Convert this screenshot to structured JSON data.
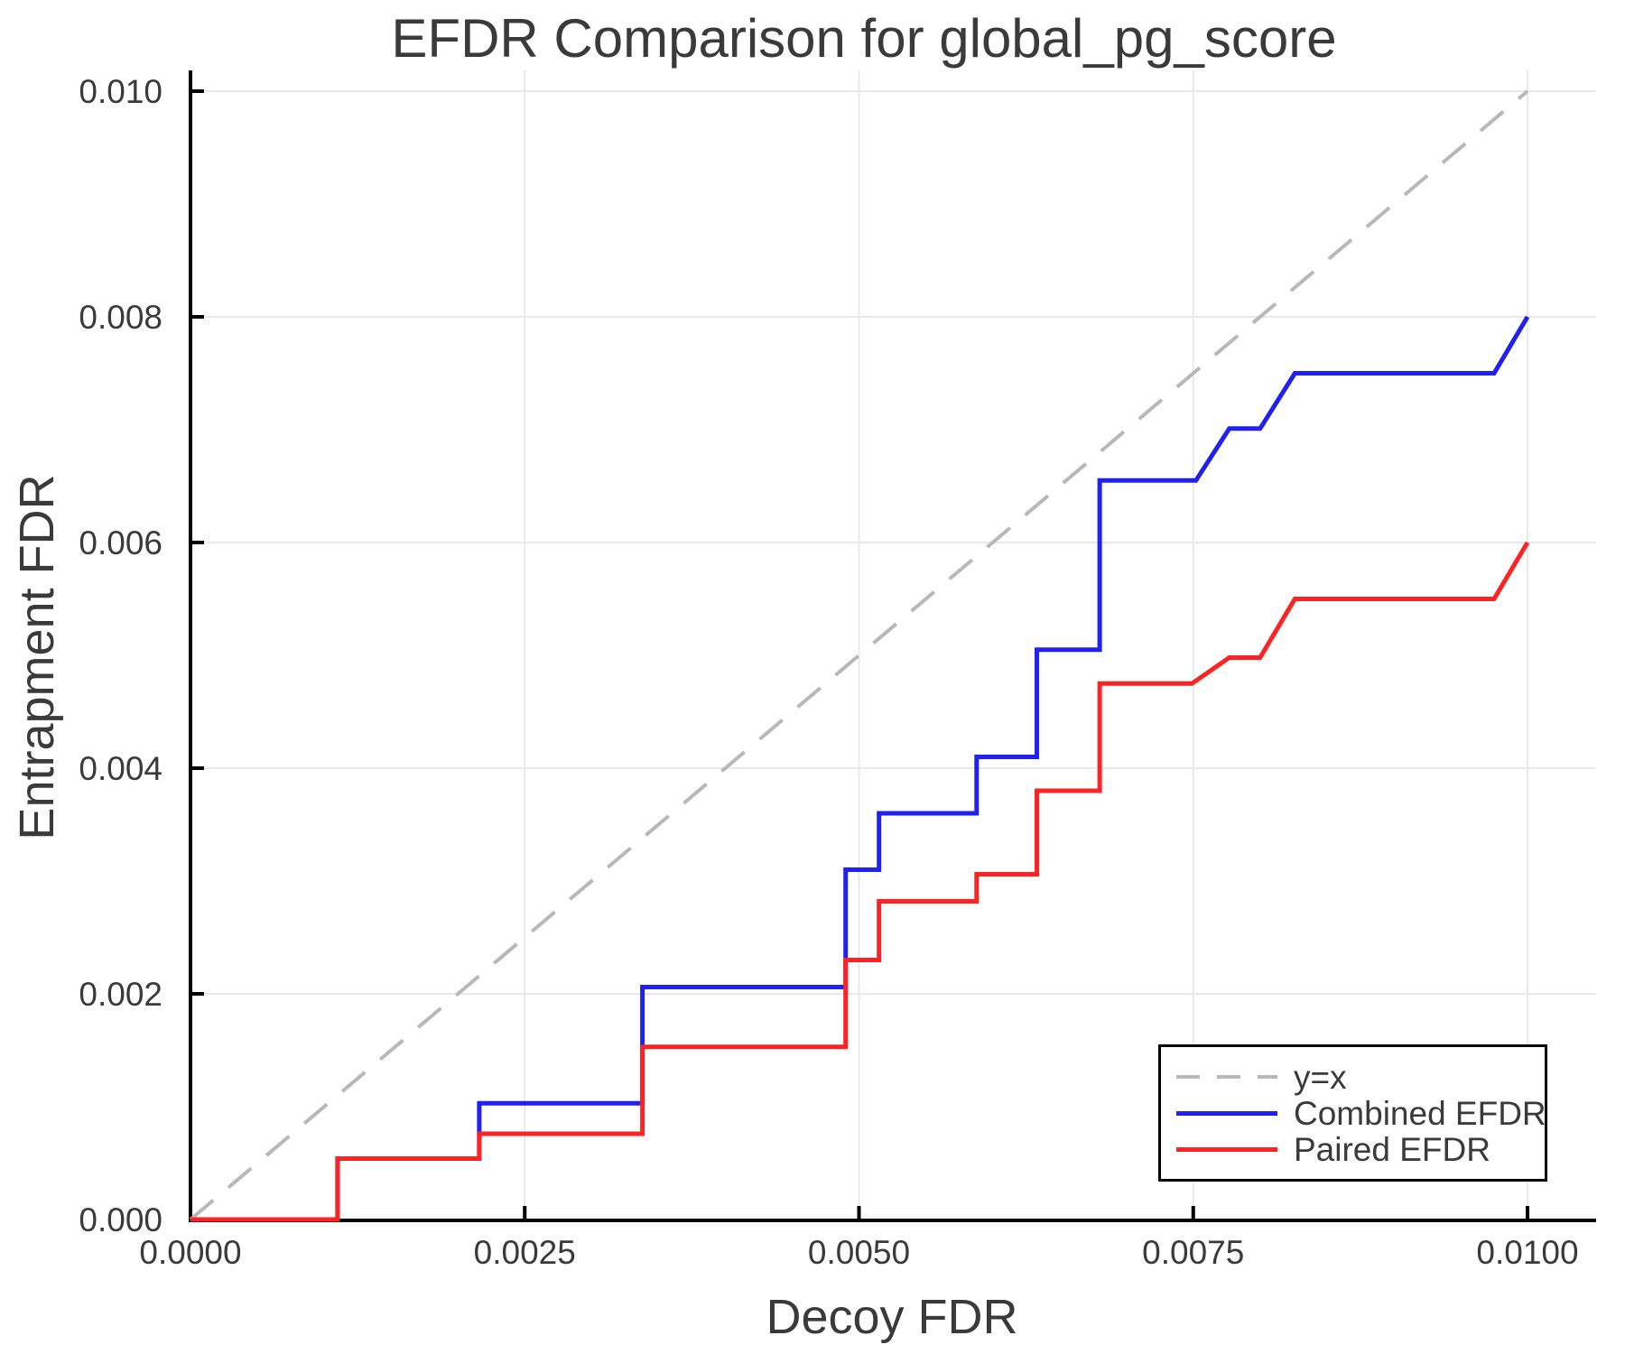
{
  "chart_data": {
    "type": "line",
    "title": "EFDR Comparison for global_pg_score",
    "xlabel": "Decoy FDR",
    "ylabel": "Entrapment FDR",
    "xlim": [
      0,
      0.0105
    ],
    "ylim": [
      0,
      0.01017
    ],
    "grid": true,
    "legend_position": "bottom-right",
    "x_ticks": [
      {
        "v": 0.0,
        "label": "0.0000"
      },
      {
        "v": 0.0025,
        "label": "0.0025"
      },
      {
        "v": 0.005,
        "label": "0.0050"
      },
      {
        "v": 0.0075,
        "label": "0.0075"
      },
      {
        "v": 0.01,
        "label": "0.0100"
      }
    ],
    "y_ticks": [
      {
        "v": 0.0,
        "label": "0.000"
      },
      {
        "v": 0.002,
        "label": "0.002"
      },
      {
        "v": 0.004,
        "label": "0.004"
      },
      {
        "v": 0.006,
        "label": "0.006"
      },
      {
        "v": 0.008,
        "label": "0.008"
      },
      {
        "v": 0.01,
        "label": "0.010"
      }
    ],
    "series": [
      {
        "name": "y=x",
        "color": "#b8b8b8",
        "dash": true,
        "width": 4,
        "points": [
          [
            0,
            0
          ],
          [
            0.01,
            0.01
          ]
        ]
      },
      {
        "name": "Combined EFDR",
        "color": "#2020f0",
        "dash": false,
        "width": 5,
        "points": [
          [
            0,
            0
          ],
          [
            0.0011,
            0
          ],
          [
            0.0011,
            0.00054
          ],
          [
            0.00216,
            0.00054
          ],
          [
            0.00216,
            0.00103
          ],
          [
            0.00338,
            0.00103
          ],
          [
            0.00338,
            0.00206
          ],
          [
            0.0049,
            0.00206
          ],
          [
            0.0049,
            0.0031
          ],
          [
            0.00515,
            0.0031
          ],
          [
            0.00515,
            0.0036
          ],
          [
            0.00588,
            0.0036
          ],
          [
            0.00588,
            0.0041
          ],
          [
            0.00633,
            0.0041
          ],
          [
            0.00633,
            0.00505
          ],
          [
            0.0068,
            0.00505
          ],
          [
            0.0068,
            0.00655
          ],
          [
            0.00752,
            0.00655
          ],
          [
            0.00777,
            0.00701
          ],
          [
            0.008,
            0.00701
          ],
          [
            0.00826,
            0.0075
          ],
          [
            0.00975,
            0.0075
          ],
          [
            0.01,
            0.008
          ]
        ]
      },
      {
        "name": "Paired EFDR",
        "color": "#fb2323",
        "dash": false,
        "width": 5,
        "points": [
          [
            0,
            0
          ],
          [
            0.0011,
            0
          ],
          [
            0.0011,
            0.00054
          ],
          [
            0.00216,
            0.00054
          ],
          [
            0.00216,
            0.00076
          ],
          [
            0.00338,
            0.00076
          ],
          [
            0.00338,
            0.00153
          ],
          [
            0.0049,
            0.00153
          ],
          [
            0.0049,
            0.0023
          ],
          [
            0.00515,
            0.0023
          ],
          [
            0.00515,
            0.00282
          ],
          [
            0.00588,
            0.00282
          ],
          [
            0.00588,
            0.00306
          ],
          [
            0.00633,
            0.00306
          ],
          [
            0.00633,
            0.0038
          ],
          [
            0.0068,
            0.0038
          ],
          [
            0.0068,
            0.00475
          ],
          [
            0.00749,
            0.00475
          ],
          [
            0.00777,
            0.00498
          ],
          [
            0.008,
            0.00498
          ],
          [
            0.00826,
            0.0055
          ],
          [
            0.00975,
            0.0055
          ],
          [
            0.01,
            0.006
          ]
        ]
      }
    ],
    "colors": {
      "background": "#ffffff",
      "grid": "#e9e9e9",
      "axis": "#000000",
      "text": "#3a3a3a",
      "legend_border": "#000000"
    }
  }
}
